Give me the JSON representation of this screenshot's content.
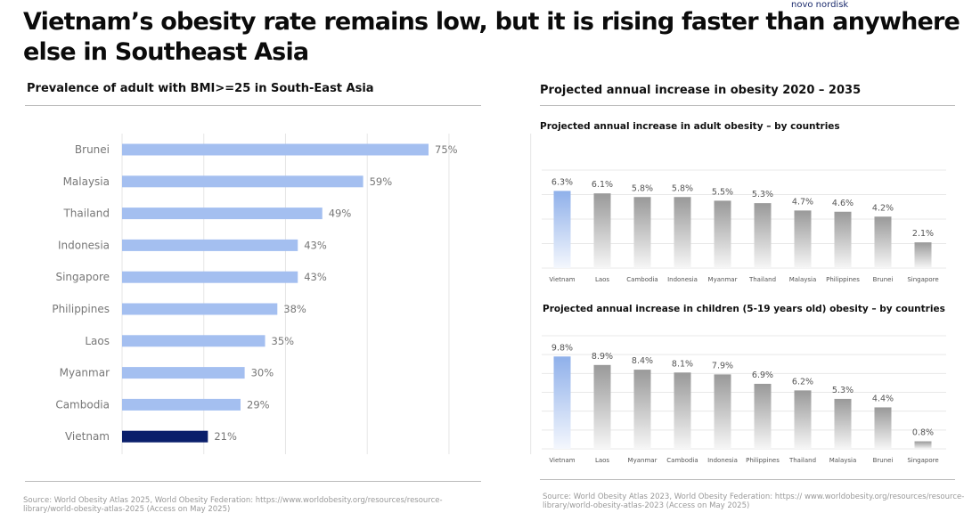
{
  "logo_text": "novo nordisk",
  "title": "Vietnam’s obesity rate remains low, but it is rising faster than anywhere else in Southeast Asia",
  "left": {
    "heading": "Prevalence of adult with BMI>=25 in South-East Asia",
    "source": [
      "Source: World Obesity Atlas 2025, World Obesity Federation: https://www.worldobesity.org/resources/resource-",
      "library/world-obesity-atlas-2025 (Access on May 2025)"
    ]
  },
  "right": {
    "heading": "Projected annual increase in obesity 2020 – 2035",
    "source": [
      "Source: World Obesity Atlas 2023, World Obesity Federation: https:// www.worldobesity.org/resources/resource-",
      "library/world-obesity-atlas-2023 (Access on May 2025)"
    ]
  },
  "chart_data": [
    {
      "type": "bar",
      "orientation": "horizontal",
      "title": "Prevalence of adult with BMI>=25 in South-East Asia",
      "categories": [
        "Brunei",
        "Malaysia",
        "Thailand",
        "Indonesia",
        "Singapore",
        "Philippines",
        "Laos",
        "Myanmar",
        "Cambodia",
        "Vietnam"
      ],
      "values": [
        75,
        59,
        49,
        43,
        43,
        38,
        35,
        30,
        29,
        21
      ],
      "labels": [
        "75%",
        "59%",
        "49%",
        "43%",
        "43%",
        "38%",
        "35%",
        "30%",
        "29%",
        "21%"
      ],
      "xlim": [
        0,
        100
      ],
      "grid": true,
      "colors": {
        "default": "#a4bff0",
        "highlight": "#0a1f6b"
      },
      "highlight": "Vietnam"
    },
    {
      "type": "bar",
      "title": "Projected annual increase in adult obesity – by countries",
      "categories": [
        "Vietnam",
        "Laos",
        "Cambodia",
        "Indonesia",
        "Myanmar",
        "Thailand",
        "Malaysia",
        "Philippines",
        "Brunei",
        "Singapore"
      ],
      "values": [
        6.3,
        6.1,
        5.8,
        5.8,
        5.5,
        5.3,
        4.7,
        4.6,
        4.2,
        2.1
      ],
      "labels": [
        "6.3%",
        "6.1%",
        "5.8%",
        "5.8%",
        "5.5%",
        "5.3%",
        "4.7%",
        "4.6%",
        "4.2%",
        "2.1%"
      ],
      "ylim": [
        0,
        8
      ],
      "grid": true,
      "colors": {
        "default": "#999999",
        "highlight": "#8fb0ea"
      },
      "highlight": "Vietnam"
    },
    {
      "type": "bar",
      "title": "Projected annual increase in children (5-19 years old) obesity – by countries",
      "categories": [
        "Vietnam",
        "Laos",
        "Myanmar",
        "Cambodia",
        "Indonesia",
        "Philippines",
        "Thailand",
        "Malaysia",
        "Brunei",
        "Singapore"
      ],
      "values": [
        9.8,
        8.9,
        8.4,
        8.1,
        7.9,
        6.9,
        6.2,
        5.3,
        4.4,
        0.8
      ],
      "labels": [
        "9.8%",
        "8.9%",
        "8.4%",
        "8.1%",
        "7.9%",
        "6.9%",
        "6.2%",
        "5.3%",
        "4.4%",
        "0.8%"
      ],
      "ylim": [
        0,
        12
      ],
      "grid": true,
      "colors": {
        "default": "#999999",
        "highlight": "#8fb0ea"
      },
      "highlight": "Vietnam"
    }
  ]
}
